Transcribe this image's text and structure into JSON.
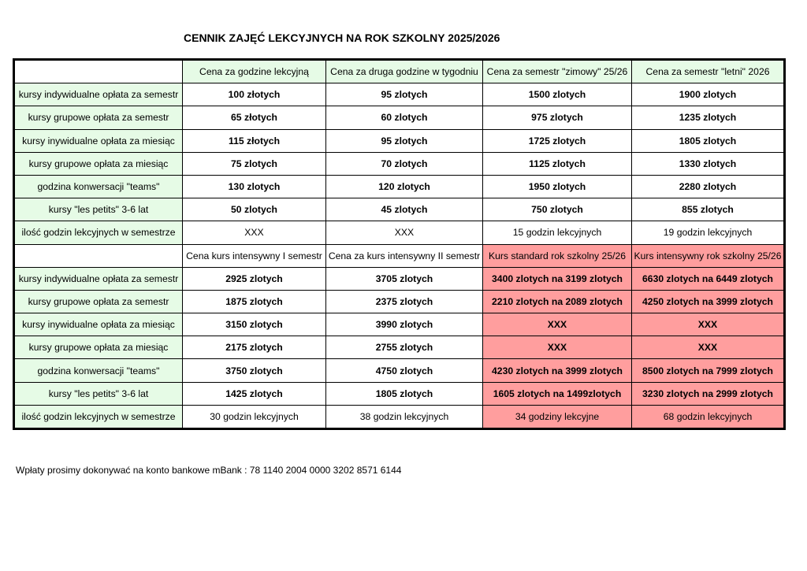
{
  "title": "CENNIK ZAJĘĆ LEKCYJNYCH NA ROK SZKOLNY 2025/2026",
  "colors": {
    "header_green": "#e6fbe6",
    "promo_pink": "#ff9e9e"
  },
  "row_labels": [
    "kursy indywidualne opłata za semestr",
    "kursy grupowe opłata za semestr",
    "kursy inywidualne opłata za miesiąc",
    "kursy grupowe opłata za miesiąc",
    "godzina konwersacji \"teams\"",
    "kursy \"les petits\" 3-6 lat",
    "ilość godzin lekcyjnych w semestrze"
  ],
  "section1": {
    "headers": [
      "",
      "Cena za godzine lekcyjną",
      "Cena za druga godzine w tygodniu",
      "Cena za semestr \"zimowy\" 25/26",
      "Cena za semestr \"letni\" 2026"
    ],
    "rows": [
      [
        "100 złotych",
        "95 zlotych",
        "1500 zlotych",
        "1900 zlotych"
      ],
      [
        "65 złotych",
        "60 zlotych",
        "975 zlotych",
        "1235 zlotych"
      ],
      [
        "115 złotych",
        "95 zlotych",
        "1725 zlotych",
        "1805 zlotych"
      ],
      [
        "75 zlotych",
        "70 zlotych",
        "1125 zlotych",
        "1330 zlotych"
      ],
      [
        "130 zlotych",
        "120 zlotych",
        "1950 zlotych",
        "2280 zlotych"
      ],
      [
        "50 zlotych",
        "45 zlotych",
        "750 zlotych",
        "855 zlotych"
      ],
      [
        "XXX",
        "XXX",
        "15 godzin lekcyjnych",
        "19 godzin lekcyjnych"
      ]
    ]
  },
  "section2": {
    "headers": [
      "",
      "Cena kurs intensywny I semestr",
      "Cena za kurs intensywny II semestr",
      "Kurs standard rok szkolny 25/26",
      "Kurs intensywny rok szkolny 25/26"
    ],
    "rows": [
      [
        "2925 zlotych",
        "3705 zlotych",
        "3400 zlotych na 3199 zlotych",
        "6630 zlotych na 6449 zlotych"
      ],
      [
        "1875 zlotych",
        "2375 zlotych",
        "2210 zlotych na 2089 zlotych",
        "4250 zlotych na 3999 zlotych"
      ],
      [
        "3150 zlotych",
        "3990 zlotych",
        "XXX",
        "XXX"
      ],
      [
        "2175 zlotych",
        "2755 zlotych",
        "XXX",
        "XXX"
      ],
      [
        "3750 zlotych",
        "4750 zlotych",
        "4230 zlotych na 3999 zlotych",
        "8500 zlotych na 7999 zlotych"
      ],
      [
        "1425 zlotych",
        "1805 zlotych",
        "1605 zlotych na 1499zlotych",
        "3230 zlotych na 2999 zlotych"
      ],
      [
        "30 godzin lekcyjnych",
        "38 godzin lekcyjnych",
        "34 godziny lekcyjne",
        "68 godzin lekcyjnych"
      ]
    ]
  },
  "footer": "Wpłaty prosimy dokonywać na konto bankowe mBank : 78 1140 2004 0000 3202 8571 6144"
}
